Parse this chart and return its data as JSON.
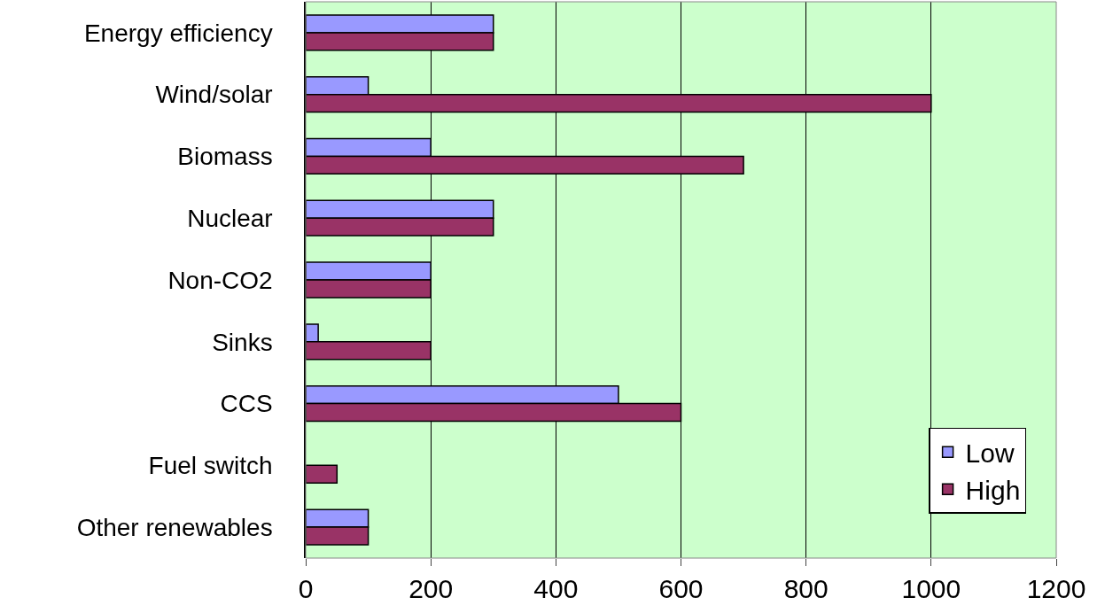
{
  "chart_data": {
    "type": "bar",
    "orientation": "horizontal",
    "categories": [
      "Energy efficiency",
      "Wind/solar",
      "Biomass",
      "Nuclear",
      "Non-CO2",
      "Sinks",
      "CCS",
      "Fuel switch",
      "Other renewables"
    ],
    "series": [
      {
        "name": "Low",
        "color": "#9999ff",
        "values": [
          300,
          100,
          200,
          300,
          200,
          20,
          500,
          null,
          100
        ]
      },
      {
        "name": "High",
        "color": "#993366",
        "values": [
          300,
          1000,
          700,
          300,
          200,
          200,
          600,
          50,
          100
        ]
      }
    ],
    "xlim": [
      0,
      1200
    ],
    "xticks": [
      0,
      200,
      400,
      600,
      800,
      1000,
      1200
    ],
    "grid": "x",
    "legend": "bottom right"
  }
}
